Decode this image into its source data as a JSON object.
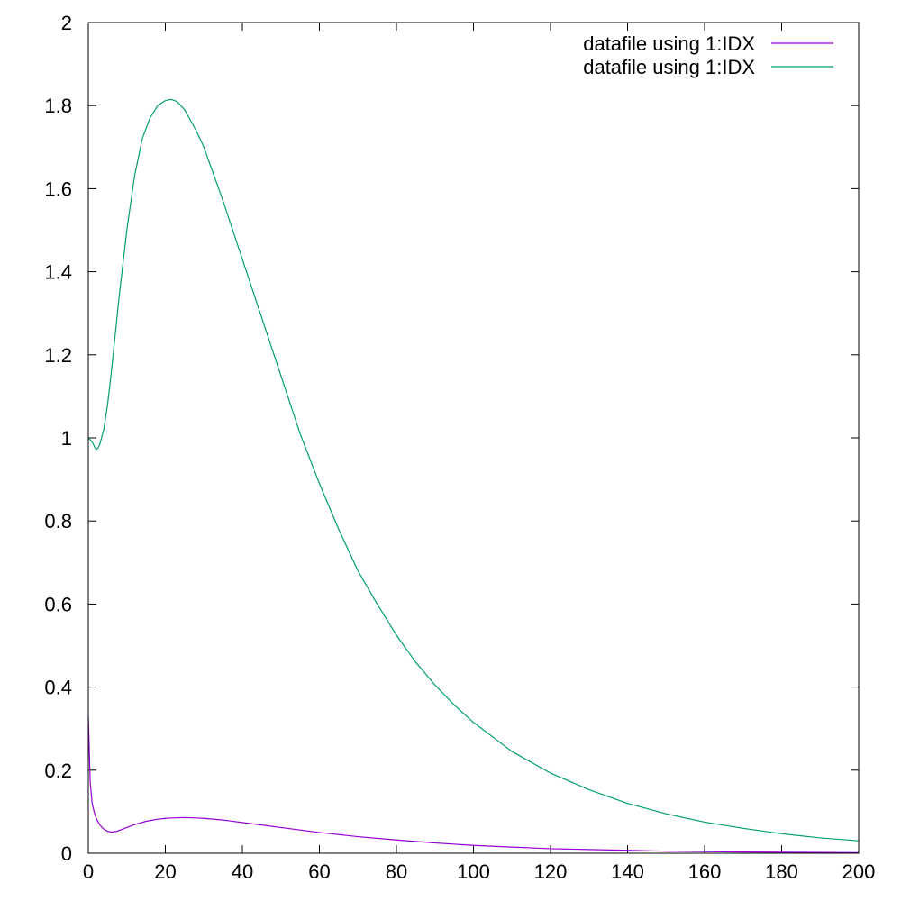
{
  "chart_data": {
    "type": "line",
    "title": "",
    "xlabel": "",
    "ylabel": "",
    "xlim": [
      0,
      200
    ],
    "ylim": [
      0,
      2
    ],
    "x_ticks": [
      0,
      20,
      40,
      60,
      80,
      100,
      120,
      140,
      160,
      180,
      200
    ],
    "y_ticks": [
      0,
      0.2,
      0.4,
      0.6,
      0.8,
      1,
      1.2,
      1.4,
      1.6,
      1.8,
      2
    ],
    "x_tick_labels": [
      "0",
      "20",
      "40",
      "60",
      "80",
      "100",
      "120",
      "140",
      "160",
      "180",
      "200"
    ],
    "y_tick_labels": [
      "0",
      "0.2",
      "0.4",
      "0.6",
      "0.8",
      "1",
      "1.2",
      "1.4",
      "1.6",
      "1.8",
      "2"
    ],
    "grid": false,
    "legend_position": "top-right",
    "series": [
      {
        "name": "datafile using 1:IDX",
        "color": "#9400d3",
        "points": [
          [
            0,
            0.33
          ],
          [
            0.5,
            0.17
          ],
          [
            1,
            0.12
          ],
          [
            1.5,
            0.1
          ],
          [
            2,
            0.085
          ],
          [
            3,
            0.068
          ],
          [
            4,
            0.058
          ],
          [
            5,
            0.053
          ],
          [
            6,
            0.051
          ],
          [
            7,
            0.052
          ],
          [
            8,
            0.055
          ],
          [
            10,
            0.062
          ],
          [
            12,
            0.069
          ],
          [
            15,
            0.077
          ],
          [
            18,
            0.082
          ],
          [
            20,
            0.084
          ],
          [
            22,
            0.085
          ],
          [
            25,
            0.086
          ],
          [
            28,
            0.085
          ],
          [
            30,
            0.084
          ],
          [
            35,
            0.08
          ],
          [
            40,
            0.074
          ],
          [
            45,
            0.068
          ],
          [
            50,
            0.062
          ],
          [
            55,
            0.056
          ],
          [
            60,
            0.05
          ],
          [
            70,
            0.04
          ],
          [
            80,
            0.032
          ],
          [
            90,
            0.025
          ],
          [
            100,
            0.019
          ],
          [
            110,
            0.015
          ],
          [
            120,
            0.011
          ],
          [
            130,
            0.009
          ],
          [
            140,
            0.007
          ],
          [
            150,
            0.005
          ],
          [
            160,
            0.004
          ],
          [
            170,
            0.003
          ],
          [
            180,
            0.0025
          ],
          [
            190,
            0.002
          ],
          [
            200,
            0.0015
          ]
        ]
      },
      {
        "name": "datafile using 1:IDX",
        "color": "#009e73",
        "points": [
          [
            0,
            1
          ],
          [
            1,
            0.99
          ],
          [
            2,
            0.972
          ],
          [
            2.5,
            0.975
          ],
          [
            3,
            0.985
          ],
          [
            4,
            1.02
          ],
          [
            5,
            1.08
          ],
          [
            6,
            1.16
          ],
          [
            8,
            1.34
          ],
          [
            10,
            1.5
          ],
          [
            12,
            1.63
          ],
          [
            14,
            1.72
          ],
          [
            16,
            1.77
          ],
          [
            18,
            1.8
          ],
          [
            20,
            1.812
          ],
          [
            21.5,
            1.815
          ],
          [
            23,
            1.81
          ],
          [
            25,
            1.79
          ],
          [
            28,
            1.74
          ],
          [
            30,
            1.7
          ],
          [
            35,
            1.57
          ],
          [
            40,
            1.43
          ],
          [
            45,
            1.29
          ],
          [
            50,
            1.15
          ],
          [
            55,
            1.01
          ],
          [
            60,
            0.89
          ],
          [
            65,
            0.78
          ],
          [
            70,
            0.68
          ],
          [
            75,
            0.6
          ],
          [
            80,
            0.525
          ],
          [
            85,
            0.46
          ],
          [
            90,
            0.405
          ],
          [
            95,
            0.357
          ],
          [
            100,
            0.315
          ],
          [
            110,
            0.245
          ],
          [
            120,
            0.193
          ],
          [
            130,
            0.153
          ],
          [
            140,
            0.12
          ],
          [
            150,
            0.095
          ],
          [
            160,
            0.075
          ],
          [
            170,
            0.06
          ],
          [
            180,
            0.047
          ],
          [
            190,
            0.037
          ],
          [
            200,
            0.03
          ]
        ]
      }
    ]
  }
}
